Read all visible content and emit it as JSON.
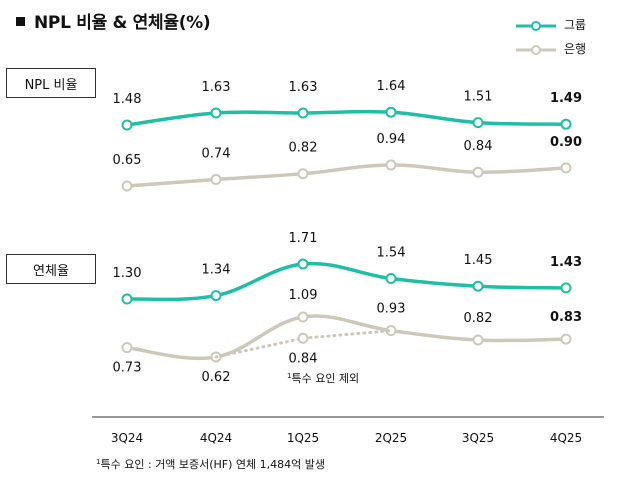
{
  "title": "NPL 비율 & 연체율(%)",
  "legend": [
    {
      "label": "그룹",
      "color": "#1fbfa6"
    },
    {
      "label": "은행",
      "color": "#cec8ba"
    }
  ],
  "footnote": {
    "mark": "1",
    "text": "특수 요인 : 거액 보증서(HF) 연체 1,484억 발생"
  },
  "chart_data": [
    {
      "type": "line",
      "title": "NPL 비율",
      "categories": [
        "3Q24",
        "4Q24",
        "1Q25",
        "2Q25",
        "3Q25",
        "4Q25"
      ],
      "series": [
        {
          "name": "그룹",
          "values": [
            1.48,
            1.63,
            1.63,
            1.64,
            1.51,
            1.49
          ],
          "labels": [
            "1.48",
            "1.63",
            "1.63",
            "1.64",
            "1.51",
            "1.49"
          ]
        },
        {
          "name": "은행",
          "values": [
            0.65,
            0.74,
            0.82,
            0.94,
            0.84,
            0.9
          ],
          "labels": [
            "0.65",
            "0.74",
            "0.82",
            "0.94",
            "0.84",
            "0.90"
          ]
        }
      ]
    },
    {
      "type": "line",
      "title": "연체율",
      "categories": [
        "3Q24",
        "4Q24",
        "1Q25",
        "2Q25",
        "3Q25",
        "4Q25"
      ],
      "series": [
        {
          "name": "그룹",
          "values": [
            1.3,
            1.34,
            1.71,
            1.54,
            1.45,
            1.43
          ],
          "labels": [
            "1.30",
            "1.34",
            "1.71",
            "1.54",
            "1.45",
            "1.43"
          ]
        },
        {
          "name": "은행",
          "values": [
            0.73,
            0.62,
            1.09,
            0.93,
            0.82,
            0.83
          ],
          "labels": [
            "0.73",
            "0.62",
            "1.09",
            "0.93",
            "0.82",
            "0.83"
          ]
        }
      ],
      "excl_special": {
        "name": "특수 요인 제외",
        "values": [
          null,
          0.62,
          0.84,
          0.93,
          null,
          null
        ],
        "labels": [
          null,
          null,
          "0.84",
          null,
          null,
          null
        ],
        "note_mark": "1",
        "note_text": "특수 요인 제외"
      }
    }
  ]
}
